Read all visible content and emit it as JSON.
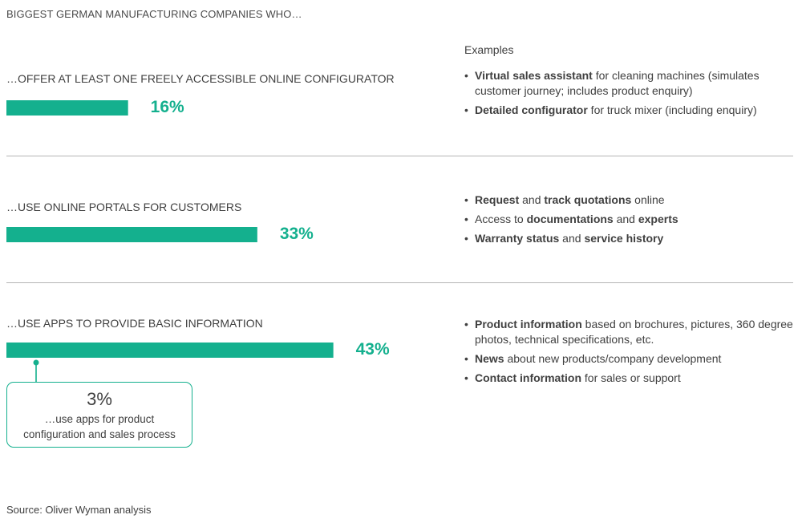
{
  "title": "BIGGEST GERMAN MANUFACTURING COMPANIES WHO…",
  "examples_heading": "Examples",
  "source": "Source: Oliver Wyman analysis",
  "colors": {
    "accent": "#14b08e",
    "text": "#404040",
    "divider": "#b5b5b5"
  },
  "chart_data": {
    "type": "bar",
    "orientation": "horizontal",
    "categories": [
      "…OFFER AT LEAST ONE FREELY ACCESSIBLE ONLINE CONFIGURATOR",
      "…USE ONLINE PORTALS FOR CUSTOMERS",
      "…USE APPS TO PROVIDE BASIC INFORMATION"
    ],
    "values": [
      16,
      33,
      43
    ],
    "value_labels": [
      "16%",
      "33%",
      "43%"
    ],
    "unit": "%",
    "xlim": [
      0,
      100
    ],
    "grid": false,
    "color": "#14b08e",
    "annotation": {
      "value": "3%",
      "text": "…use apps for product configuration and sales process",
      "attached_to": "…USE APPS TO PROVIDE BASIC INFORMATION"
    }
  },
  "examples": [
    {
      "bullets": [
        {
          "parts": [
            {
              "text": "Virtual sales assistant",
              "bold": true
            },
            {
              "text": " for cleaning machines (simulates customer journey; includes product enquiry)",
              "bold": false
            }
          ]
        },
        {
          "parts": [
            {
              "text": "Detailed configurator",
              "bold": true
            },
            {
              "text": " for truck mixer (including enquiry)",
              "bold": false
            }
          ]
        }
      ]
    },
    {
      "bullets": [
        {
          "parts": [
            {
              "text": "Request",
              "bold": true
            },
            {
              "text": " and ",
              "bold": false
            },
            {
              "text": "track quotations",
              "bold": true
            },
            {
              "text": " online",
              "bold": false
            }
          ]
        },
        {
          "parts": [
            {
              "text": "Access to ",
              "bold": false
            },
            {
              "text": "documentations",
              "bold": true
            },
            {
              "text": " and ",
              "bold": false
            },
            {
              "text": "experts",
              "bold": true
            }
          ]
        },
        {
          "parts": [
            {
              "text": "Warranty status",
              "bold": true
            },
            {
              "text": " and ",
              "bold": false
            },
            {
              "text": "service history",
              "bold": true
            }
          ]
        }
      ]
    },
    {
      "bullets": [
        {
          "parts": [
            {
              "text": "Product information",
              "bold": true
            },
            {
              "text": " based on brochures, pictures, 360 degree photos, technical specifications, etc.",
              "bold": false
            }
          ]
        },
        {
          "parts": [
            {
              "text": "News",
              "bold": true
            },
            {
              "text": " about new products/company development",
              "bold": false
            }
          ]
        },
        {
          "parts": [
            {
              "text": "Contact information",
              "bold": true
            },
            {
              "text": " for sales or support",
              "bold": false
            }
          ]
        }
      ]
    }
  ]
}
